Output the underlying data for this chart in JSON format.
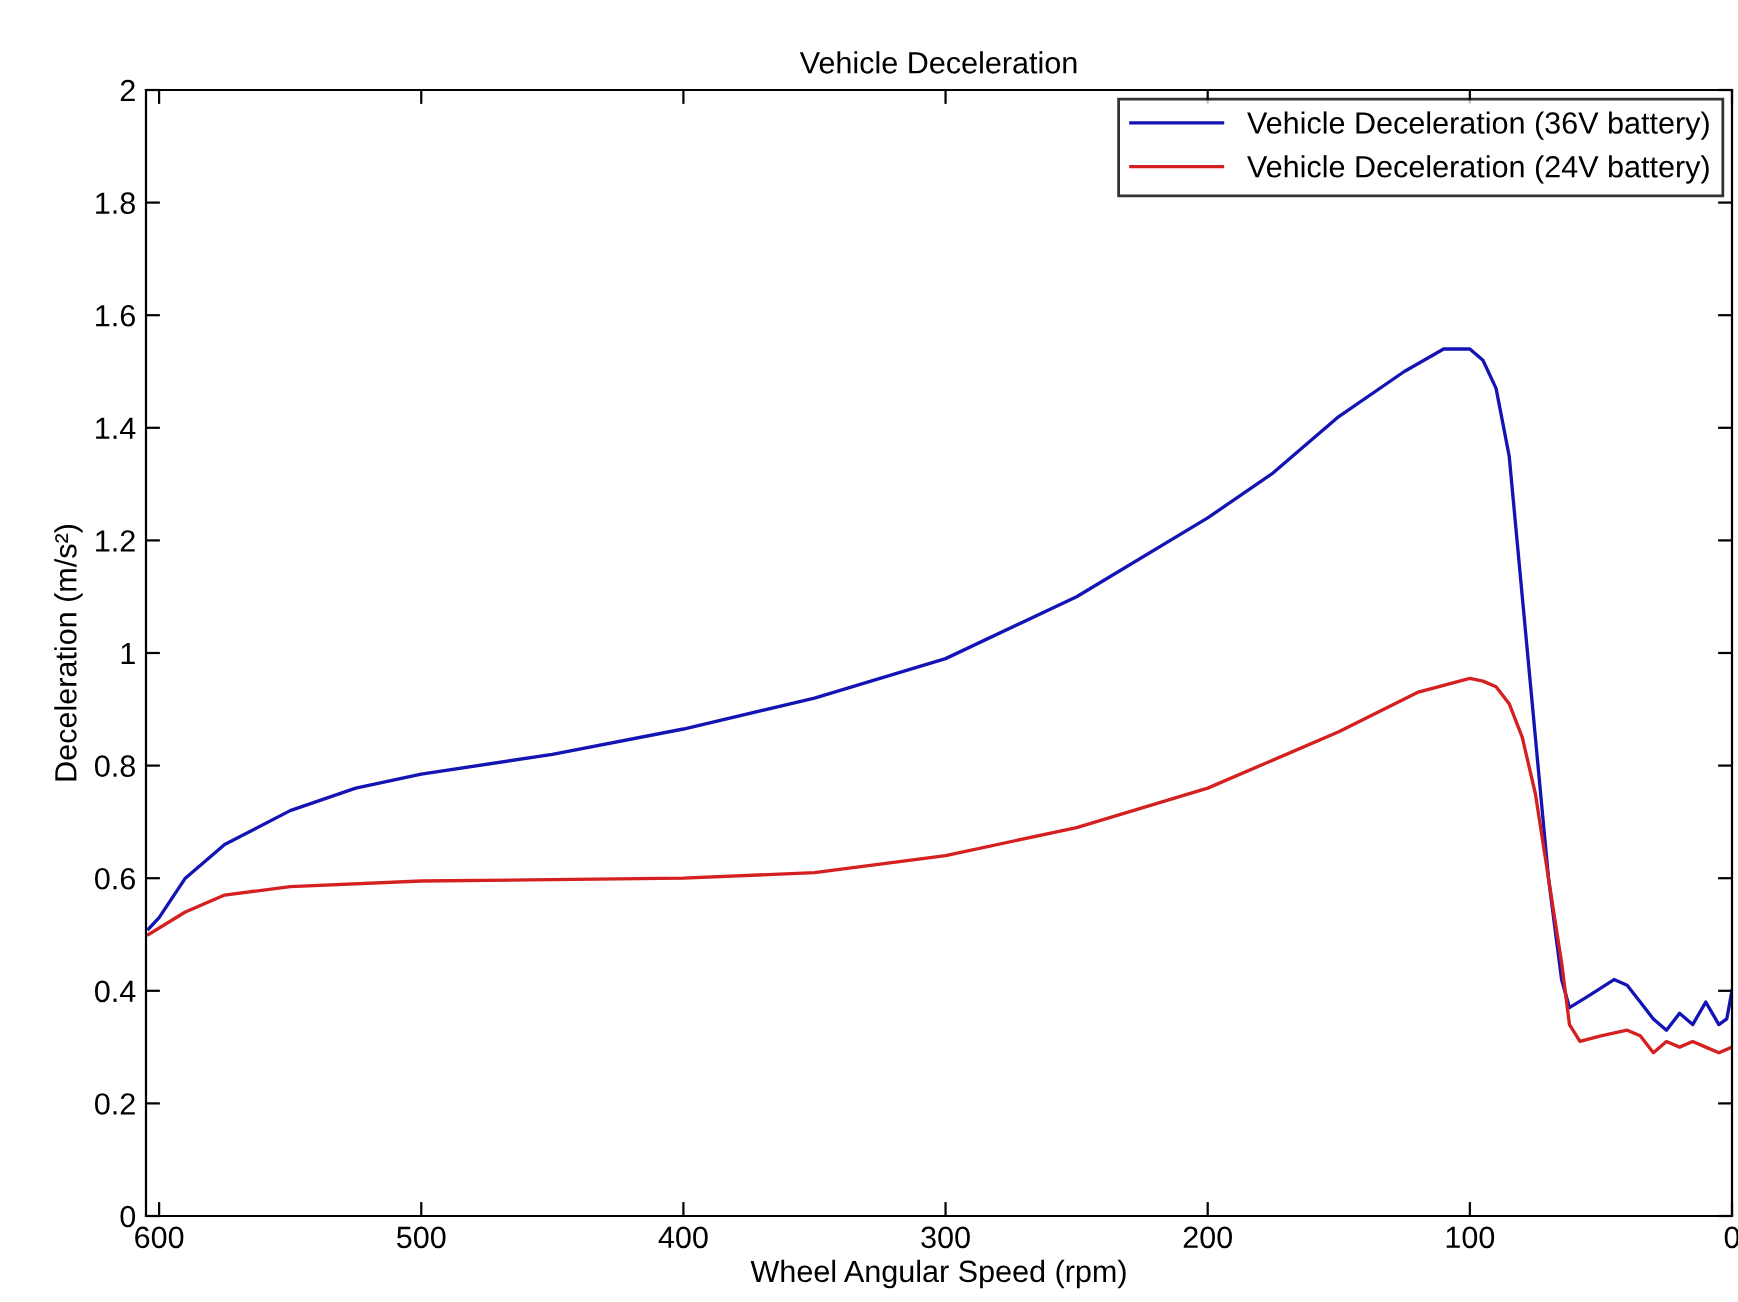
{
  "chart_data": {
    "type": "line",
    "title": "Vehicle Deceleration",
    "xlabel": "Wheel Angular Speed (rpm)",
    "ylabel": "Deceleration (m/s²)",
    "xlim": [
      605,
      0
    ],
    "ylim": [
      0,
      2
    ],
    "xticks": [
      600,
      500,
      400,
      300,
      200,
      100,
      0
    ],
    "yticks": [
      0,
      0.2,
      0.4,
      0.6,
      0.8,
      1,
      1.2,
      1.4,
      1.6,
      1.8,
      2
    ],
    "grid": false,
    "legend": "top right",
    "line_style": "solid",
    "marker": "none",
    "series": [
      {
        "name": "Vehicle Deceleration (36V battery)",
        "color": "#1414b4",
        "x": [
          604,
          600,
          590,
          575,
          550,
          525,
          500,
          450,
          400,
          350,
          300,
          250,
          200,
          175,
          150,
          125,
          110,
          100,
          95,
          90,
          85,
          80,
          75,
          70,
          65,
          62,
          55,
          45,
          40,
          35,
          30,
          25,
          20,
          15,
          10,
          5,
          2,
          0
        ],
        "values": [
          0.51,
          0.53,
          0.6,
          0.66,
          0.72,
          0.76,
          0.785,
          0.82,
          0.865,
          0.92,
          0.99,
          1.1,
          1.24,
          1.32,
          1.42,
          1.5,
          1.54,
          1.54,
          1.52,
          1.47,
          1.35,
          1.1,
          0.85,
          0.6,
          0.42,
          0.37,
          0.39,
          0.42,
          0.41,
          0.38,
          0.35,
          0.33,
          0.36,
          0.34,
          0.38,
          0.34,
          0.35,
          0.4
        ]
      },
      {
        "name": "Vehicle Deceleration (24V battery)",
        "color": "#d42020",
        "x": [
          604,
          590,
          575,
          550,
          500,
          400,
          350,
          300,
          250,
          200,
          150,
          120,
          100,
          95,
          90,
          85,
          80,
          75,
          70,
          65,
          62,
          58,
          50,
          40,
          35,
          30,
          25,
          20,
          15,
          10,
          5,
          0
        ],
        "values": [
          0.5,
          0.54,
          0.57,
          0.585,
          0.595,
          0.6,
          0.61,
          0.64,
          0.69,
          0.76,
          0.86,
          0.93,
          0.955,
          0.95,
          0.94,
          0.91,
          0.85,
          0.75,
          0.6,
          0.45,
          0.34,
          0.31,
          0.32,
          0.33,
          0.32,
          0.29,
          0.31,
          0.3,
          0.31,
          0.3,
          0.29,
          0.3
        ]
      }
    ]
  }
}
